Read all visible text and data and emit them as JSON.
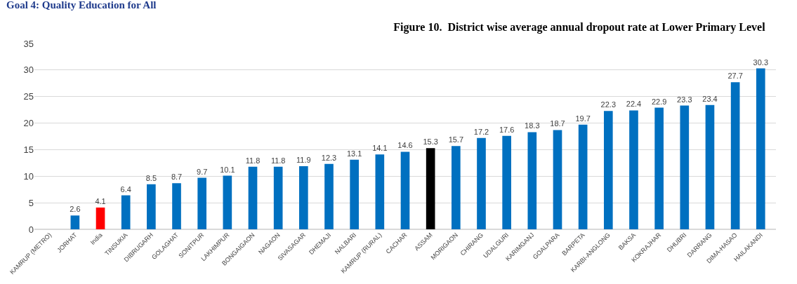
{
  "chart_data": {
    "type": "bar",
    "title": "Figure 10.  District wise average annual dropout rate at Lower Primary Level",
    "annotations": [
      "Goal 4: Quality Education for All"
    ],
    "categories": [
      "KAMRUP (METRO)",
      "JORHAT",
      "India",
      "TINSUKIA",
      "DIBRUGARH",
      "GOLAGHAT",
      "SONITPUR",
      "LAKHIMPUR",
      "BONGAIGAON",
      "NAGAON",
      "SIVASAGAR",
      "DHEMAJI",
      "NALBARI",
      "KAMRUP (RURAL)",
      "CACHAR",
      "ASSAM",
      "MORIGAON",
      "CHIRANG",
      "UDALGURI",
      "KARIMGANJ",
      "GOALPARA",
      "BARPETA",
      "KARBI-ANGLONG",
      "BAKSA",
      "KOKRAJHAR",
      "DHUBRI",
      "DARRANG",
      "DIMA-HASAO",
      "HAILAKANDI"
    ],
    "values": [
      null,
      2.6,
      4.1,
      6.4,
      8.5,
      8.7,
      9.7,
      10.1,
      11.8,
      11.8,
      11.9,
      12.3,
      13.1,
      14.1,
      14.6,
      15.3,
      15.7,
      17.2,
      17.6,
      18.3,
      18.7,
      19.7,
      22.3,
      22.4,
      22.9,
      23.3,
      23.4,
      27.7,
      30.3
    ],
    "value_labels": [
      null,
      "2.6",
      "4.1",
      "6.4",
      "8.5",
      "8.7",
      "9.7",
      "10.1",
      "11.8",
      "11.8",
      "11.9",
      "12.3",
      "13.1",
      "14.1",
      "14.6",
      "15.3",
      "15.7",
      "17.2",
      "17.6",
      "18.3",
      "18.7",
      "19.7",
      "22.3",
      "22.4",
      "22.9",
      "23.3",
      "23.4",
      "27.7",
      "30.3"
    ],
    "colors": [
      "#0070c0",
      "#0070c0",
      "#ff0000",
      "#0070c0",
      "#0070c0",
      "#0070c0",
      "#0070c0",
      "#0070c0",
      "#0070c0",
      "#0070c0",
      "#0070c0",
      "#0070c0",
      "#0070c0",
      "#0070c0",
      "#0070c0",
      "#000000",
      "#0070c0",
      "#0070c0",
      "#0070c0",
      "#0070c0",
      "#0070c0",
      "#0070c0",
      "#0070c0",
      "#0070c0",
      "#0070c0",
      "#0070c0",
      "#0070c0",
      "#0070c0",
      "#0070c0"
    ],
    "ylim": [
      0,
      35
    ],
    "yticks": [
      0,
      5,
      10,
      15,
      20,
      25,
      30,
      35
    ],
    "grid": "y",
    "legend": false
  }
}
